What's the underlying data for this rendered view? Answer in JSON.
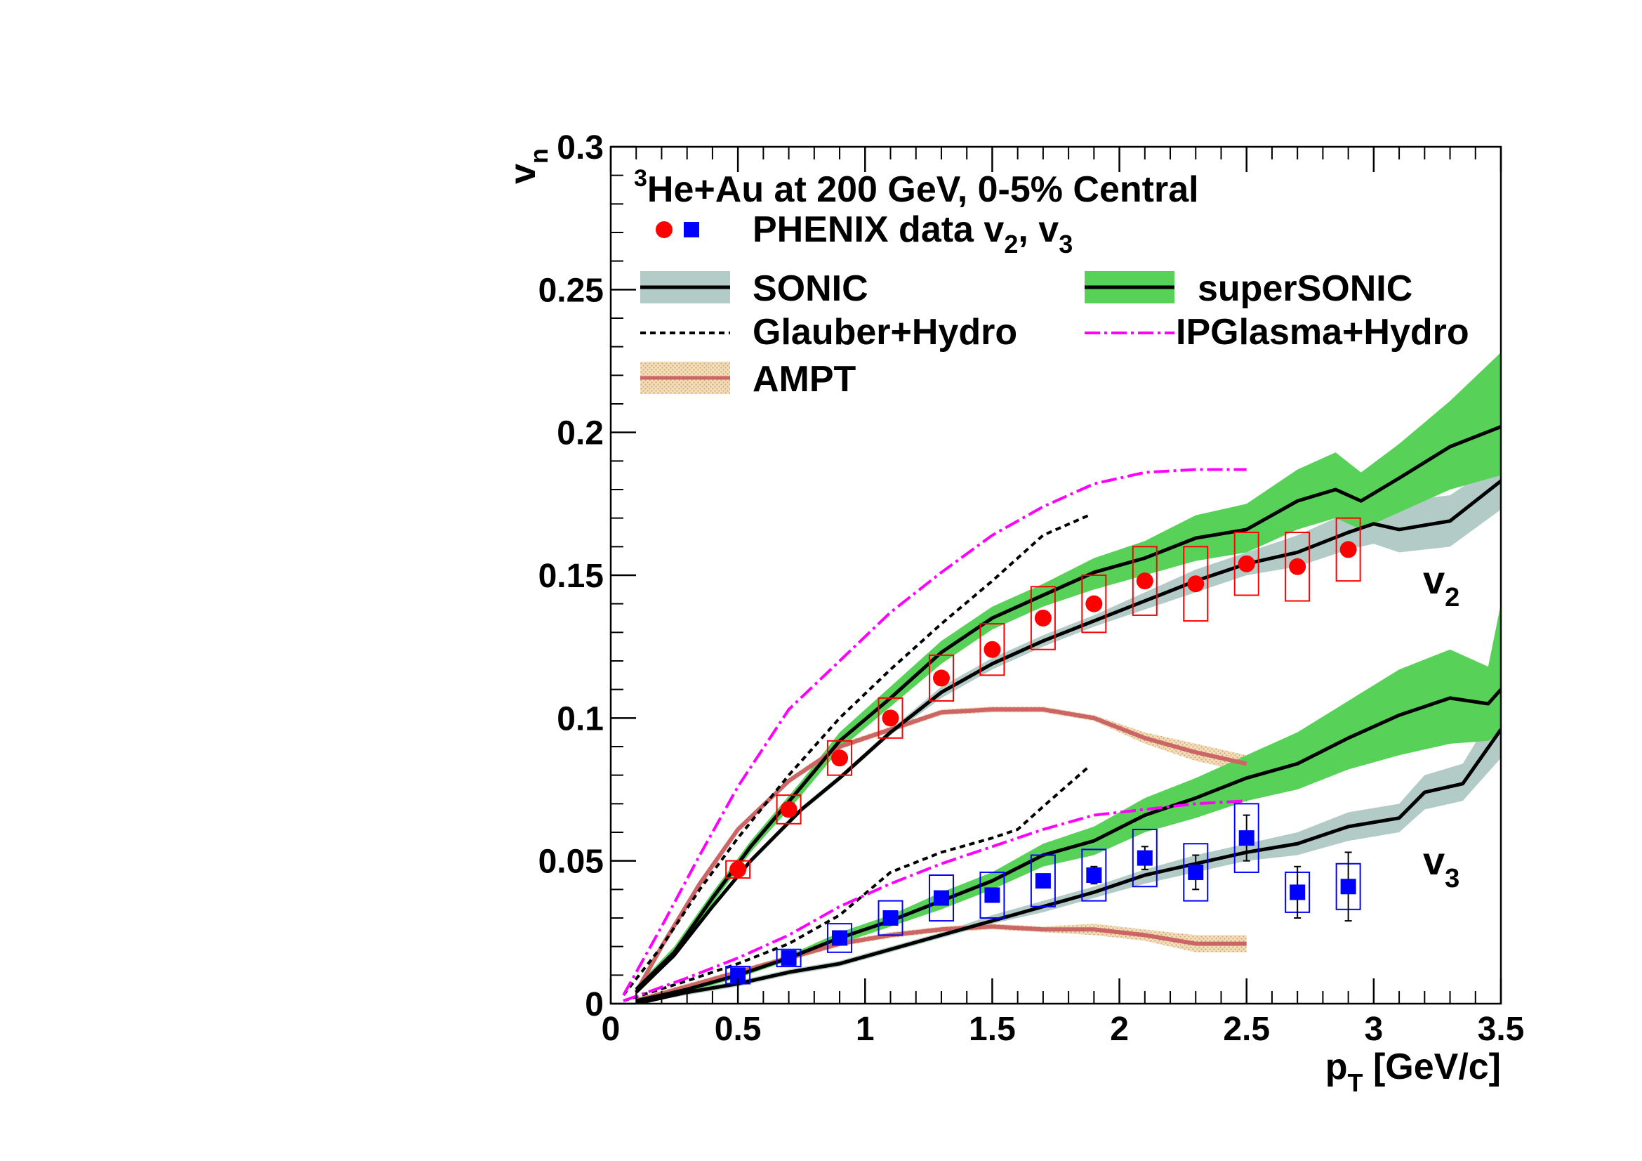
{
  "chart_data": {
    "type": "line",
    "title_line1_sup": "3",
    "title_line1": "He+Au at 200 GeV, 0-5% Central",
    "data_legend": {
      "text": "PHENIX data v",
      "sub1": "2",
      "sep": ", v",
      "sub2": "3"
    },
    "xlabel": {
      "main": "p",
      "sub": "T",
      "rest": " [GeV/c]"
    },
    "ylabel": {
      "main": "v",
      "sub": "n"
    },
    "xlim": [
      0,
      3.5
    ],
    "ylim": [
      0,
      0.3
    ],
    "x_ticks": [
      "0",
      "0.5",
      "1",
      "1.5",
      "2",
      "2.5",
      "3",
      "3.5"
    ],
    "y_ticks": [
      "0",
      "0.05",
      "0.1",
      "0.15",
      "0.2",
      "0.25",
      "0.3"
    ],
    "annotations": {
      "v2": {
        "main": "v",
        "sub": "2"
      },
      "v3": {
        "main": "v",
        "sub": "3"
      }
    },
    "legend": {
      "sonic": "SONIC",
      "supersonic": "superSONIC",
      "glauber": "Glauber+Hydro",
      "ipglasma": "IPGlasma+Hydro",
      "ampt": "AMPT"
    },
    "colors": {
      "v2_marker": "#ff0000",
      "v3_marker": "#0000ff",
      "sonic_band": "#b3cbc6",
      "supersonic_band": "#57d157",
      "ampt_line": "#cc6666",
      "ampt_band": "#e8c89a",
      "ipglasma": "#ff00ff",
      "model_line": "#000000"
    },
    "data_v2": [
      {
        "x": 0.5,
        "y": 0.047,
        "sys": 0.003
      },
      {
        "x": 0.7,
        "y": 0.068,
        "sys": 0.005
      },
      {
        "x": 0.9,
        "y": 0.086,
        "sys": 0.006
      },
      {
        "x": 1.1,
        "y": 0.1,
        "sys": 0.007
      },
      {
        "x": 1.3,
        "y": 0.114,
        "sys": 0.008
      },
      {
        "x": 1.5,
        "y": 0.124,
        "sys": 0.009
      },
      {
        "x": 1.7,
        "y": 0.135,
        "sys": 0.011
      },
      {
        "x": 1.9,
        "y": 0.14,
        "sys": 0.01
      },
      {
        "x": 2.1,
        "y": 0.148,
        "sys": 0.012
      },
      {
        "x": 2.3,
        "y": 0.147,
        "sys": 0.013
      },
      {
        "x": 2.5,
        "y": 0.154,
        "sys": 0.011
      },
      {
        "x": 2.7,
        "y": 0.153,
        "sys": 0.012
      },
      {
        "x": 2.9,
        "y": 0.159,
        "sys": 0.011
      }
    ],
    "data_v3": [
      {
        "x": 0.5,
        "y": 0.01,
        "sys": 0.003,
        "stat": 0
      },
      {
        "x": 0.7,
        "y": 0.016,
        "sys": 0.003,
        "stat": 0
      },
      {
        "x": 0.9,
        "y": 0.023,
        "sys": 0.005,
        "stat": 0
      },
      {
        "x": 1.1,
        "y": 0.03,
        "sys": 0.006,
        "stat": 0
      },
      {
        "x": 1.3,
        "y": 0.037,
        "sys": 0.008,
        "stat": 0
      },
      {
        "x": 1.5,
        "y": 0.038,
        "sys": 0.008,
        "stat": 0
      },
      {
        "x": 1.7,
        "y": 0.043,
        "sys": 0.009,
        "stat": 0.002
      },
      {
        "x": 1.9,
        "y": 0.045,
        "sys": 0.009,
        "stat": 0.003
      },
      {
        "x": 2.1,
        "y": 0.051,
        "sys": 0.01,
        "stat": 0.004
      },
      {
        "x": 2.3,
        "y": 0.046,
        "sys": 0.01,
        "stat": 0.006
      },
      {
        "x": 2.5,
        "y": 0.058,
        "sys": 0.012,
        "stat": 0.008
      },
      {
        "x": 2.7,
        "y": 0.039,
        "sys": 0.007,
        "stat": 0.009
      },
      {
        "x": 2.9,
        "y": 0.041,
        "sys": 0.008,
        "stat": 0.012
      }
    ],
    "series": [
      {
        "key": "supersonic_v2",
        "style": "supersonic",
        "x": [
          0.1,
          0.25,
          0.4,
          0.55,
          0.75,
          0.9,
          1.1,
          1.3,
          1.5,
          1.7,
          1.9,
          2.1,
          2.3,
          2.5,
          2.7,
          2.85,
          2.95,
          3.1,
          3.3,
          3.5
        ],
        "y": [
          0.005,
          0.018,
          0.037,
          0.055,
          0.076,
          0.092,
          0.107,
          0.123,
          0.135,
          0.143,
          0.151,
          0.156,
          0.163,
          0.166,
          0.176,
          0.18,
          0.176,
          0.184,
          0.195,
          0.202
        ],
        "lo": [
          0.004,
          0.016,
          0.035,
          0.053,
          0.073,
          0.089,
          0.104,
          0.119,
          0.131,
          0.139,
          0.145,
          0.15,
          0.155,
          0.158,
          0.166,
          0.17,
          0.166,
          0.172,
          0.18,
          0.185
        ],
        "hi": [
          0.006,
          0.02,
          0.039,
          0.057,
          0.078,
          0.095,
          0.111,
          0.127,
          0.139,
          0.147,
          0.156,
          0.162,
          0.171,
          0.175,
          0.187,
          0.193,
          0.186,
          0.196,
          0.211,
          0.228
        ]
      },
      {
        "key": "sonic_v2",
        "style": "sonic",
        "x": [
          0.1,
          0.25,
          0.4,
          0.55,
          0.75,
          0.9,
          1.1,
          1.3,
          1.5,
          1.7,
          1.9,
          2.1,
          2.3,
          2.5,
          2.7,
          2.9,
          3.0,
          3.1,
          3.3,
          3.5
        ],
        "y": [
          0.004,
          0.017,
          0.034,
          0.05,
          0.068,
          0.079,
          0.095,
          0.109,
          0.119,
          0.127,
          0.134,
          0.141,
          0.148,
          0.154,
          0.158,
          0.165,
          0.168,
          0.166,
          0.169,
          0.183
        ],
        "lo": [
          0.004,
          0.016,
          0.033,
          0.049,
          0.067,
          0.078,
          0.094,
          0.107,
          0.117,
          0.125,
          0.132,
          0.138,
          0.144,
          0.15,
          0.153,
          0.159,
          0.161,
          0.158,
          0.16,
          0.173
        ],
        "hi": [
          0.005,
          0.018,
          0.035,
          0.051,
          0.069,
          0.08,
          0.096,
          0.111,
          0.121,
          0.129,
          0.136,
          0.144,
          0.152,
          0.158,
          0.164,
          0.172,
          0.175,
          0.176,
          0.178,
          0.19
        ]
      },
      {
        "key": "supersonic_v3",
        "style": "supersonic",
        "x": [
          0.1,
          0.3,
          0.5,
          0.7,
          0.9,
          1.1,
          1.3,
          1.5,
          1.7,
          1.9,
          2.1,
          2.3,
          2.5,
          2.7,
          2.9,
          3.1,
          3.3,
          3.45,
          3.5
        ],
        "y": [
          0.001,
          0.005,
          0.01,
          0.016,
          0.023,
          0.029,
          0.036,
          0.043,
          0.052,
          0.057,
          0.066,
          0.072,
          0.079,
          0.084,
          0.093,
          0.101,
          0.107,
          0.105,
          0.11
        ],
        "lo": [
          0.001,
          0.004,
          0.009,
          0.015,
          0.021,
          0.027,
          0.033,
          0.04,
          0.048,
          0.052,
          0.06,
          0.065,
          0.071,
          0.075,
          0.082,
          0.087,
          0.091,
          0.092,
          0.095
        ],
        "hi": [
          0.002,
          0.006,
          0.011,
          0.017,
          0.025,
          0.031,
          0.039,
          0.046,
          0.056,
          0.062,
          0.072,
          0.079,
          0.087,
          0.095,
          0.106,
          0.117,
          0.124,
          0.118,
          0.14
        ]
      },
      {
        "key": "sonic_v3",
        "style": "sonic",
        "x": [
          0.1,
          0.3,
          0.5,
          0.7,
          0.9,
          1.1,
          1.3,
          1.5,
          1.7,
          1.9,
          2.1,
          2.3,
          2.5,
          2.7,
          2.9,
          3.1,
          3.2,
          3.35,
          3.5
        ],
        "y": [
          0.0,
          0.004,
          0.007,
          0.011,
          0.014,
          0.019,
          0.024,
          0.029,
          0.034,
          0.039,
          0.045,
          0.049,
          0.053,
          0.056,
          0.062,
          0.065,
          0.074,
          0.077,
          0.096
        ],
        "lo": [
          0.0,
          0.003,
          0.006,
          0.01,
          0.013,
          0.018,
          0.023,
          0.028,
          0.032,
          0.037,
          0.042,
          0.046,
          0.05,
          0.052,
          0.057,
          0.06,
          0.068,
          0.071,
          0.086
        ],
        "hi": [
          0.001,
          0.005,
          0.008,
          0.012,
          0.015,
          0.02,
          0.025,
          0.031,
          0.036,
          0.041,
          0.047,
          0.052,
          0.056,
          0.06,
          0.067,
          0.07,
          0.08,
          0.084,
          0.106
        ]
      },
      {
        "key": "ampt_v2",
        "style": "ampt",
        "x": [
          0.1,
          0.2,
          0.35,
          0.5,
          0.7,
          0.9,
          1.1,
          1.3,
          1.5,
          1.7,
          1.9,
          2.1,
          2.3,
          2.5
        ],
        "y": [
          0.004,
          0.02,
          0.042,
          0.061,
          0.078,
          0.09,
          0.096,
          0.102,
          0.103,
          0.103,
          0.1,
          0.093,
          0.088,
          0.084
        ],
        "lo": [
          0.003,
          0.019,
          0.041,
          0.06,
          0.077,
          0.089,
          0.095,
          0.101,
          0.102,
          0.102,
          0.099,
          0.091,
          0.085,
          0.081
        ],
        "hi": [
          0.005,
          0.021,
          0.043,
          0.062,
          0.079,
          0.091,
          0.097,
          0.103,
          0.104,
          0.104,
          0.101,
          0.095,
          0.091,
          0.087
        ]
      },
      {
        "key": "ampt_v3",
        "style": "ampt",
        "x": [
          0.1,
          0.3,
          0.5,
          0.7,
          0.9,
          1.1,
          1.3,
          1.5,
          1.7,
          1.9,
          2.1,
          2.3,
          2.5
        ],
        "y": [
          0.001,
          0.006,
          0.011,
          0.016,
          0.021,
          0.024,
          0.026,
          0.027,
          0.026,
          0.026,
          0.024,
          0.021,
          0.021
        ],
        "lo": [
          0.0,
          0.005,
          0.01,
          0.015,
          0.02,
          0.023,
          0.025,
          0.026,
          0.025,
          0.024,
          0.022,
          0.018,
          0.018
        ],
        "hi": [
          0.002,
          0.007,
          0.012,
          0.017,
          0.022,
          0.025,
          0.027,
          0.028,
          0.027,
          0.028,
          0.026,
          0.024,
          0.024
        ]
      },
      {
        "key": "glauber_v2",
        "style": "glauber",
        "x": [
          0.05,
          0.2,
          0.35,
          0.5,
          0.7,
          0.9,
          1.1,
          1.3,
          1.5,
          1.7,
          1.88
        ],
        "y": [
          0.003,
          0.02,
          0.04,
          0.058,
          0.08,
          0.1,
          0.117,
          0.133,
          0.148,
          0.164,
          0.171
        ],
        "lo": [],
        "hi": []
      },
      {
        "key": "glauber_v3",
        "style": "glauber",
        "x": [
          0.05,
          0.3,
          0.5,
          0.7,
          0.9,
          1.1,
          1.3,
          1.5,
          1.6,
          1.7,
          1.88
        ],
        "y": [
          0.001,
          0.008,
          0.014,
          0.021,
          0.031,
          0.046,
          0.053,
          0.058,
          0.061,
          0.069,
          0.083
        ],
        "lo": [],
        "hi": []
      },
      {
        "key": "ipglasma_v2",
        "style": "ipglasma",
        "x": [
          0.05,
          0.2,
          0.35,
          0.5,
          0.7,
          0.9,
          1.1,
          1.3,
          1.5,
          1.7,
          1.9,
          2.1,
          2.3,
          2.5
        ],
        "y": [
          0.003,
          0.027,
          0.052,
          0.076,
          0.103,
          0.12,
          0.137,
          0.151,
          0.164,
          0.174,
          0.182,
          0.186,
          0.187,
          0.187
        ],
        "lo": [],
        "hi": []
      },
      {
        "key": "ipglasma_v3",
        "style": "ipglasma",
        "x": [
          0.05,
          0.3,
          0.5,
          0.7,
          0.9,
          1.1,
          1.3,
          1.5,
          1.7,
          1.9,
          2.1,
          2.3,
          2.5
        ],
        "y": [
          0.001,
          0.009,
          0.016,
          0.024,
          0.034,
          0.042,
          0.049,
          0.055,
          0.061,
          0.066,
          0.068,
          0.07,
          0.071
        ],
        "lo": [],
        "hi": []
      }
    ]
  }
}
